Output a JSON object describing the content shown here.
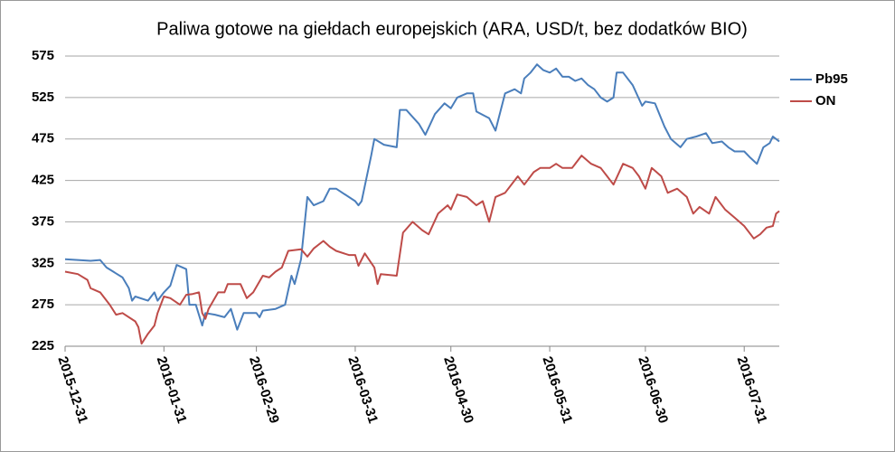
{
  "chart_data": {
    "type": "line",
    "title": "Paliwa gotowe na giełdach europejskich (ARA, USD/t, bez dodatków BIO)",
    "xlim": [
      "2015-12-31",
      "2016-08-11"
    ],
    "xticks": [
      "2015-12-31",
      "2016-01-31",
      "2016-02-29",
      "2016-03-31",
      "2016-04-30",
      "2016-05-31",
      "2016-06-30",
      "2016-07-31"
    ],
    "ylim": [
      225,
      575
    ],
    "yticks": [
      225,
      275,
      325,
      375,
      425,
      475,
      525,
      575
    ],
    "grid": true,
    "legend": "right",
    "series": [
      {
        "name": "Pb95",
        "color": "#4a7ebb",
        "x": [
          "2015-12-31",
          "2016-01-04",
          "2016-01-08",
          "2016-01-11",
          "2016-01-13",
          "2016-01-18",
          "2016-01-20",
          "2016-01-21",
          "2016-01-22",
          "2016-01-26",
          "2016-01-28",
          "2016-01-29",
          "2016-01-31",
          "2016-02-02",
          "2016-02-04",
          "2016-02-07",
          "2016-02-08",
          "2016-02-10",
          "2016-02-12",
          "2016-02-13",
          "2016-02-16",
          "2016-02-19",
          "2016-02-21",
          "2016-02-23",
          "2016-02-25",
          "2016-02-29",
          "2016-03-01",
          "2016-03-02",
          "2016-03-06",
          "2016-03-09",
          "2016-03-11",
          "2016-03-12",
          "2016-03-14",
          "2016-03-16",
          "2016-03-18",
          "2016-03-21",
          "2016-03-23",
          "2016-03-25",
          "2016-03-27",
          "2016-03-31",
          "2016-04-01",
          "2016-04-02",
          "2016-04-05",
          "2016-04-06",
          "2016-04-09",
          "2016-04-13",
          "2016-04-14",
          "2016-04-16",
          "2016-04-20",
          "2016-04-22",
          "2016-04-25",
          "2016-04-28",
          "2016-04-30",
          "2016-05-02",
          "2016-05-05",
          "2016-05-07",
          "2016-05-08",
          "2016-05-12",
          "2016-05-14",
          "2016-05-15",
          "2016-05-17",
          "2016-05-20",
          "2016-05-22",
          "2016-05-23",
          "2016-05-25",
          "2016-05-27",
          "2016-05-29",
          "2016-05-31",
          "2016-06-02",
          "2016-06-04",
          "2016-06-06",
          "2016-06-08",
          "2016-06-10",
          "2016-06-12",
          "2016-06-14",
          "2016-06-16",
          "2016-06-18",
          "2016-06-20",
          "2016-06-21",
          "2016-06-23",
          "2016-06-26",
          "2016-06-29",
          "2016-06-30",
          "2016-07-03",
          "2016-07-06",
          "2016-07-08",
          "2016-07-11",
          "2016-07-13",
          "2016-07-16",
          "2016-07-19",
          "2016-07-21",
          "2016-07-24",
          "2016-07-26",
          "2016-07-28",
          "2016-07-31",
          "2016-08-02",
          "2016-08-04",
          "2016-08-05",
          "2016-08-06",
          "2016-08-08",
          "2016-08-09",
          "2016-08-11"
        ],
        "values": [
          330,
          329,
          328,
          329,
          320,
          308,
          295,
          280,
          285,
          280,
          290,
          280,
          290,
          298,
          323,
          318,
          275,
          275,
          250,
          265,
          263,
          260,
          270,
          245,
          265,
          265,
          260,
          268,
          270,
          275,
          310,
          300,
          330,
          405,
          395,
          400,
          415,
          415,
          410,
          400,
          395,
          400,
          455,
          475,
          468,
          465,
          510,
          510,
          493,
          480,
          505,
          518,
          512,
          525,
          530,
          530,
          508,
          500,
          485,
          500,
          530,
          535,
          530,
          548,
          555,
          565,
          558,
          555,
          560,
          550,
          550,
          545,
          548,
          540,
          535,
          525,
          520,
          525,
          555,
          555,
          540,
          515,
          520,
          518,
          490,
          475,
          465,
          475,
          478,
          482,
          470,
          472,
          465,
          460,
          460,
          452,
          445,
          455,
          465,
          470,
          478,
          472
        ]
      },
      {
        "name": "ON",
        "color": "#be4b48",
        "x": [
          "2015-12-31",
          "2016-01-04",
          "2016-01-07",
          "2016-01-08",
          "2016-01-11",
          "2016-01-14",
          "2016-01-16",
          "2016-01-18",
          "2016-01-22",
          "2016-01-23",
          "2016-01-24",
          "2016-01-26",
          "2016-01-28",
          "2016-01-29",
          "2016-01-31",
          "2016-02-02",
          "2016-02-05",
          "2016-02-07",
          "2016-02-09",
          "2016-02-11",
          "2016-02-12",
          "2016-02-13",
          "2016-02-14",
          "2016-02-17",
          "2016-02-19",
          "2016-02-20",
          "2016-02-24",
          "2016-02-26",
          "2016-02-28",
          "2016-03-02",
          "2016-03-04",
          "2016-03-06",
          "2016-03-08",
          "2016-03-10",
          "2016-03-14",
          "2016-03-16",
          "2016-03-18",
          "2016-03-21",
          "2016-03-23",
          "2016-03-25",
          "2016-03-29",
          "2016-03-31",
          "2016-04-01",
          "2016-04-03",
          "2016-04-06",
          "2016-04-07",
          "2016-04-08",
          "2016-04-13",
          "2016-04-15",
          "2016-04-18",
          "2016-04-21",
          "2016-04-23",
          "2016-04-26",
          "2016-04-29",
          "2016-04-30",
          "2016-05-02",
          "2016-05-05",
          "2016-05-08",
          "2016-05-10",
          "2016-05-12",
          "2016-05-14",
          "2016-05-17",
          "2016-05-21",
          "2016-05-23",
          "2016-05-26",
          "2016-05-28",
          "2016-05-31",
          "2016-06-02",
          "2016-06-04",
          "2016-06-07",
          "2016-06-10",
          "2016-06-13",
          "2016-06-16",
          "2016-06-18",
          "2016-06-20",
          "2016-06-23",
          "2016-06-26",
          "2016-06-28",
          "2016-06-30",
          "2016-07-02",
          "2016-07-05",
          "2016-07-07",
          "2016-07-10",
          "2016-07-13",
          "2016-07-15",
          "2016-07-17",
          "2016-07-20",
          "2016-07-22",
          "2016-07-25",
          "2016-07-28",
          "2016-07-31",
          "2016-08-03",
          "2016-08-05",
          "2016-08-07",
          "2016-08-09",
          "2016-08-10",
          "2016-08-11"
        ],
        "values": [
          315,
          312,
          305,
          295,
          290,
          275,
          263,
          265,
          255,
          248,
          228,
          240,
          250,
          265,
          285,
          283,
          275,
          287,
          288,
          290,
          265,
          258,
          270,
          290,
          290,
          300,
          300,
          283,
          290,
          310,
          308,
          315,
          320,
          340,
          342,
          333,
          343,
          352,
          345,
          340,
          335,
          335,
          322,
          337,
          320,
          300,
          312,
          310,
          362,
          375,
          365,
          360,
          385,
          395,
          390,
          408,
          405,
          395,
          400,
          375,
          405,
          410,
          430,
          420,
          435,
          440,
          440,
          445,
          440,
          440,
          455,
          445,
          440,
          430,
          420,
          445,
          440,
          430,
          415,
          440,
          430,
          410,
          415,
          405,
          385,
          393,
          385,
          405,
          390,
          380,
          370,
          355,
          360,
          368,
          370,
          385,
          388
        ]
      }
    ]
  }
}
